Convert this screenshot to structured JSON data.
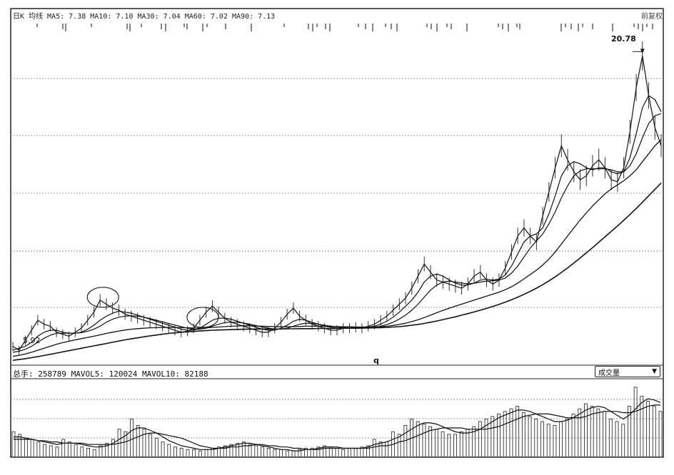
{
  "header": {
    "ma_text": "日K 均线 MA5: 7.38 MA10: 7.10 MA30: 7.04 MA60: 7.02 MA90: 7.13",
    "right_text": "前复权"
  },
  "volume_panel": {
    "text": "总手: 258789 MAVOL5: 120024 MAVOL10: 82188",
    "selector_label": "成交量",
    "selector_arrow": "▼"
  },
  "annotations": {
    "high_label": "20.78",
    "low_label": "5.92",
    "q_label": "q"
  },
  "chart_data": {
    "type": "line",
    "title": "",
    "xlabel": "",
    "ylabel": "",
    "price_range": [
      5.5,
      22.5
    ],
    "high": 20.78,
    "low": 5.92,
    "grid": true,
    "legend": "none",
    "price_series": [
      6.3,
      6.1,
      6.6,
      7.1,
      7.6,
      7.4,
      7.3,
      7.0,
      6.9,
      6.8,
      7.0,
      7.2,
      7.6,
      8.0,
      8.6,
      8.4,
      8.2,
      8.1,
      7.9,
      7.8,
      7.7,
      7.6,
      7.5,
      7.4,
      7.3,
      7.2,
      7.1,
      7.0,
      7.05,
      7.2,
      7.6,
      8.0,
      8.3,
      8.0,
      7.7,
      7.5,
      7.4,
      7.3,
      7.2,
      7.1,
      7.0,
      7.0,
      7.2,
      7.5,
      7.9,
      8.2,
      7.8,
      7.6,
      7.4,
      7.3,
      7.2,
      7.1,
      7.1,
      7.2,
      7.2,
      7.25,
      7.2,
      7.3,
      7.4,
      7.6,
      7.8,
      8.1,
      8.4,
      8.7,
      9.2,
      9.8,
      10.4,
      10.0,
      9.6,
      9.5,
      9.4,
      9.3,
      9.2,
      9.4,
      9.8,
      10.0,
      9.6,
      9.4,
      9.6,
      10.2,
      11.0,
      11.8,
      12.2,
      11.8,
      11.5,
      12.8,
      14.0,
      15.2,
      16.3,
      15.6,
      15.0,
      14.6,
      14.8,
      15.3,
      15.6,
      15.2,
      14.6,
      14.5,
      15.2,
      17.0,
      19.2,
      20.78,
      18.8,
      17.2,
      16.3
    ],
    "ma_series": [
      {
        "values": [
          6.1,
          6.2,
          6.3,
          6.5,
          6.8,
          7.0,
          7.1,
          7.1,
          7.0,
          6.95,
          6.95,
          7.0,
          7.15,
          7.35,
          7.6,
          7.8,
          7.95,
          8.05,
          8.0,
          7.95,
          7.85,
          7.75,
          7.65,
          7.55,
          7.45,
          7.35,
          7.25,
          7.15,
          7.1,
          7.1,
          7.2,
          7.4,
          7.6,
          7.7,
          7.7,
          7.65,
          7.55,
          7.45,
          7.35,
          7.25,
          7.15,
          7.1,
          7.1,
          7.2,
          7.35,
          7.55,
          7.65,
          7.6,
          7.5,
          7.4,
          7.3,
          7.25,
          7.2,
          7.2,
          7.2,
          7.2,
          7.22,
          7.25,
          7.3,
          7.4,
          7.55,
          7.75,
          8.0,
          8.3,
          8.6,
          9.0,
          9.5,
          9.8,
          9.9,
          9.8,
          9.6,
          9.45,
          9.35,
          9.35,
          9.45,
          9.6,
          9.65,
          9.6,
          9.65,
          9.85,
          10.3,
          10.9,
          11.5,
          11.8,
          11.9,
          12.2,
          12.9,
          13.8,
          14.8,
          15.3,
          15.5,
          15.4,
          15.2,
          15.1,
          15.2,
          15.2,
          15.0,
          14.9,
          15.0,
          15.7,
          16.9,
          18.2,
          18.8,
          18.6,
          18.0
        ]
      },
      {
        "values": [
          6.0,
          6.05,
          6.15,
          6.3,
          6.5,
          6.7,
          6.85,
          6.95,
          6.95,
          6.95,
          6.95,
          6.98,
          7.05,
          7.15,
          7.3,
          7.5,
          7.65,
          7.75,
          7.8,
          7.82,
          7.8,
          7.75,
          7.68,
          7.6,
          7.52,
          7.44,
          7.36,
          7.28,
          7.2,
          7.15,
          7.15,
          7.2,
          7.3,
          7.4,
          7.48,
          7.5,
          7.5,
          7.46,
          7.4,
          7.33,
          7.26,
          7.2,
          7.16,
          7.16,
          7.2,
          7.3,
          7.4,
          7.45,
          7.44,
          7.4,
          7.35,
          7.3,
          7.26,
          7.23,
          7.21,
          7.2,
          7.2,
          7.22,
          7.25,
          7.3,
          7.38,
          7.5,
          7.66,
          7.85,
          8.1,
          8.4,
          8.75,
          9.1,
          9.35,
          9.5,
          9.55,
          9.5,
          9.45,
          9.42,
          9.44,
          9.5,
          9.55,
          9.57,
          9.6,
          9.7,
          9.95,
          10.3,
          10.75,
          11.2,
          11.55,
          11.9,
          12.4,
          13.0,
          13.7,
          14.3,
          14.8,
          15.05,
          15.15,
          15.15,
          15.15,
          15.15,
          15.1,
          15.0,
          15.0,
          15.3,
          15.9,
          16.7,
          17.4,
          17.8,
          17.9
        ]
      },
      {
        "values": [
          5.8,
          5.85,
          5.92,
          6.0,
          6.1,
          6.2,
          6.3,
          6.4,
          6.48,
          6.55,
          6.62,
          6.68,
          6.74,
          6.8,
          6.87,
          6.94,
          7.0,
          7.06,
          7.11,
          7.15,
          7.18,
          7.2,
          7.22,
          7.23,
          7.24,
          7.24,
          7.24,
          7.23,
          7.22,
          7.21,
          7.21,
          7.22,
          7.24,
          7.26,
          7.28,
          7.3,
          7.31,
          7.32,
          7.32,
          7.31,
          7.3,
          7.29,
          7.28,
          7.27,
          7.27,
          7.28,
          7.29,
          7.3,
          7.3,
          7.3,
          7.3,
          7.29,
          7.28,
          7.27,
          7.27,
          7.26,
          7.26,
          7.26,
          7.27,
          7.28,
          7.3,
          7.34,
          7.39,
          7.45,
          7.53,
          7.62,
          7.73,
          7.85,
          7.97,
          8.09,
          8.2,
          8.3,
          8.4,
          8.5,
          8.6,
          8.7,
          8.8,
          8.9,
          9.0,
          9.12,
          9.27,
          9.45,
          9.66,
          9.88,
          10.1,
          10.35,
          10.65,
          11.0,
          11.4,
          11.8,
          12.2,
          12.6,
          12.95,
          13.3,
          13.6,
          13.9,
          14.15,
          14.35,
          14.55,
          14.8,
          15.1,
          15.5,
          15.9,
          16.3,
          16.6
        ]
      },
      {
        "values": [
          5.6,
          5.64,
          5.68,
          5.73,
          5.78,
          5.84,
          5.9,
          5.96,
          6.02,
          6.08,
          6.14,
          6.2,
          6.26,
          6.32,
          6.38,
          6.44,
          6.5,
          6.56,
          6.62,
          6.67,
          6.72,
          6.77,
          6.82,
          6.86,
          6.9,
          6.94,
          6.97,
          7.0,
          7.02,
          7.04,
          7.06,
          7.08,
          7.1,
          7.11,
          7.12,
          7.13,
          7.14,
          7.15,
          7.15,
          7.16,
          7.16,
          7.16,
          7.16,
          7.16,
          7.17,
          7.17,
          7.18,
          7.18,
          7.18,
          7.19,
          7.19,
          7.19,
          7.19,
          7.2,
          7.2,
          7.2,
          7.21,
          7.21,
          7.22,
          7.23,
          7.24,
          7.26,
          7.28,
          7.31,
          7.35,
          7.39,
          7.44,
          7.5,
          7.56,
          7.63,
          7.7,
          7.77,
          7.85,
          7.93,
          8.01,
          8.1,
          8.19,
          8.29,
          8.39,
          8.5,
          8.62,
          8.75,
          8.89,
          9.04,
          9.2,
          9.37,
          9.56,
          9.76,
          9.98,
          10.21,
          10.45,
          10.7,
          10.96,
          11.22,
          11.49,
          11.76,
          12.03,
          12.3,
          12.58,
          12.87,
          13.17,
          13.48,
          13.8,
          14.12,
          14.44
        ]
      }
    ],
    "volume_series": [
      20,
      18,
      15,
      14,
      12,
      10,
      9,
      8,
      14,
      12,
      10,
      8,
      7,
      6,
      9,
      11,
      14,
      22,
      20,
      30,
      25,
      22,
      18,
      15,
      12,
      10,
      8,
      7,
      6,
      6,
      5,
      6,
      7,
      8,
      9,
      10,
      11,
      12,
      10,
      9,
      8,
      7,
      6,
      6,
      5,
      5,
      6,
      7,
      7,
      8,
      9,
      8,
      7,
      6,
      7,
      7,
      8,
      9,
      14,
      12,
      12,
      20,
      18,
      25,
      30,
      28,
      26,
      24,
      22,
      20,
      18,
      18,
      20,
      22,
      24,
      28,
      30,
      32,
      34,
      36,
      38,
      40,
      35,
      32,
      30,
      28,
      26,
      25,
      28,
      30,
      34,
      38,
      42,
      40,
      38,
      36,
      30,
      28,
      26,
      40,
      55,
      48,
      44,
      40,
      36
    ],
    "volume_ma_series": [
      {
        "values": [
          16,
          16,
          15,
          14,
          13,
          12,
          11,
          10,
          11,
          11,
          11,
          10,
          9,
          8,
          8,
          9,
          11,
          14,
          17,
          21,
          23,
          23,
          21,
          19,
          16,
          13,
          11,
          9,
          8,
          7,
          6,
          6,
          6,
          7,
          8,
          9,
          10,
          11,
          11,
          10,
          9,
          8,
          7,
          6,
          6,
          5,
          5,
          6,
          6,
          7,
          8,
          8,
          8,
          7,
          7,
          7,
          7,
          8,
          10,
          11,
          12,
          14,
          16,
          19,
          22,
          25,
          27,
          27,
          26,
          24,
          22,
          20,
          19,
          19,
          20,
          22,
          25,
          28,
          31,
          33,
          35,
          37,
          37,
          36,
          34,
          32,
          30,
          28,
          28,
          29,
          31,
          34,
          37,
          39,
          40,
          39,
          36,
          33,
          30,
          33,
          38,
          43,
          46,
          45,
          43
        ]
      },
      {
        "values": [
          14,
          14,
          14,
          14,
          13,
          13,
          12,
          12,
          11,
          11,
          11,
          11,
          10,
          10,
          10,
          10,
          10,
          11,
          12,
          14,
          16,
          18,
          19,
          19,
          18,
          17,
          16,
          15,
          13,
          11,
          9,
          8,
          7,
          7,
          7,
          8,
          8,
          9,
          9,
          10,
          10,
          9,
          9,
          8,
          8,
          7,
          7,
          6,
          6,
          6,
          7,
          7,
          7,
          7,
          7,
          7,
          7,
          7,
          8,
          9,
          9,
          10,
          12,
          13,
          15,
          17,
          19,
          21,
          22,
          23,
          23,
          23,
          23,
          22,
          22,
          22,
          22,
          23,
          24,
          26,
          28,
          30,
          32,
          33,
          34,
          34,
          34,
          33,
          32,
          31,
          31,
          31,
          32,
          34,
          35,
          36,
          36,
          36,
          35,
          35,
          36,
          38,
          40,
          41,
          41
        ]
      }
    ],
    "markers": [
      {
        "label": "20.78",
        "kind": "high",
        "value": 20.78,
        "index": 101
      },
      {
        "label": "5.92",
        "kind": "low",
        "value": 5.92,
        "index": 2
      }
    ],
    "circled_peaks": [
      14,
      30
    ]
  }
}
